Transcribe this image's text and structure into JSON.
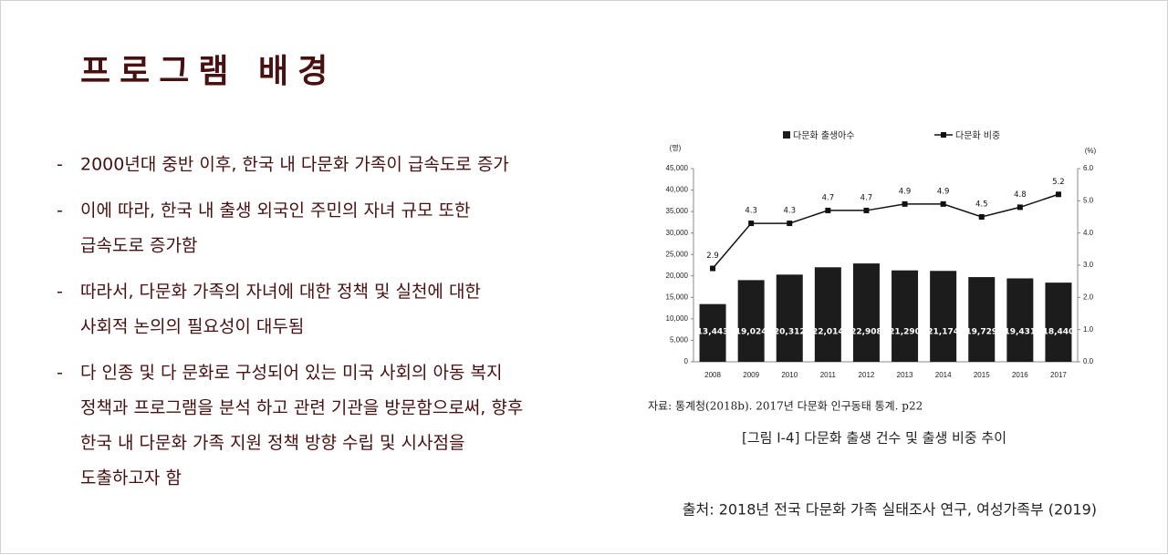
{
  "header": {
    "title": "프로그램 배경"
  },
  "bullet_marker": "-",
  "bullets": [
    [
      "2000년대 중반 이후, 한국 내 다문화 가족이 급속도로 증가"
    ],
    [
      "이에 따라, 한국 내 출생 외국인 주민의 자녀 규모 또한",
      "급속도로 증가함"
    ],
    [
      "따라서, 다문화 가족의 자녀에 대한 정책 및 실천에 대한",
      "사회적 논의의 필요성이 대두됨"
    ],
    [
      "다 인종 및 다 문화로 구성되어 있는 미국 사회의 아동 복지",
      "정책과 프로그램을 분석 하고 관련 기관을 방문함으로써, 향후",
      "한국 내 다문화 가족 지원 정책 방향 수립 및 시사점을",
      "도출하고자 함"
    ]
  ],
  "chart_data": {
    "type": "bar-line",
    "y_label": "(명)",
    "y2_label": "(%)",
    "categories": [
      "2008",
      "2009",
      "2010",
      "2011",
      "2012",
      "2013",
      "2014",
      "2015",
      "2016",
      "2017"
    ],
    "series": [
      {
        "name": "다문화 출생아수",
        "type": "bar",
        "color": "#1c1c1c",
        "values": [
          13443,
          19024,
          20312,
          22014,
          22908,
          21290,
          21174,
          19729,
          19431,
          18440
        ],
        "value_labels": [
          "13,443",
          "19,024",
          "20,312",
          "22,014",
          "22,908",
          "21,290",
          "21,174",
          "19,729",
          "19,431",
          "18,440"
        ]
      },
      {
        "name": "다문화 비중",
        "type": "line",
        "axis": "y2",
        "color": "#111111",
        "values": [
          2.9,
          4.3,
          4.3,
          4.7,
          4.7,
          4.9,
          4.9,
          4.5,
          4.8,
          5.2
        ]
      }
    ],
    "ylim": [
      0,
      45000
    ],
    "yticks": [
      0,
      {
        "value": 5000,
        "label": "5,000"
      },
      {
        "value": 10000,
        "label": "10,000"
      },
      {
        "value": 15000,
        "label": "15,000"
      },
      {
        "value": 20000,
        "label": "20,000"
      },
      {
        "value": 25000,
        "label": "25,000"
      },
      {
        "value": 30000,
        "label": "30,000"
      },
      {
        "value": 35000,
        "label": "35,000"
      },
      {
        "value": 40000,
        "label": "40,000"
      },
      {
        "value": 45000,
        "label": "45,000"
      }
    ],
    "y2lim": [
      0,
      6
    ],
    "y2ticks": [
      {
        "value": 0,
        "label": "0.0"
      },
      {
        "value": 1,
        "label": "1.0"
      },
      {
        "value": 2,
        "label": "2.0"
      },
      {
        "value": 3,
        "label": "3.0"
      },
      {
        "value": 4,
        "label": "4.0"
      },
      {
        "value": 5,
        "label": "5.0"
      },
      {
        "value": 6,
        "label": "6.0"
      }
    ]
  },
  "chart_source": "자료: 통계청(2018b). 2017년 다문화 인구동태 통계. p22",
  "chart_caption": "[그림 Ⅰ-4] 다문화 출생 건수 및 출생 비중 추이",
  "footer": "출처: 2018년 전국 다문화 가족 실태조사 연구, 여성가족부 (2019)"
}
